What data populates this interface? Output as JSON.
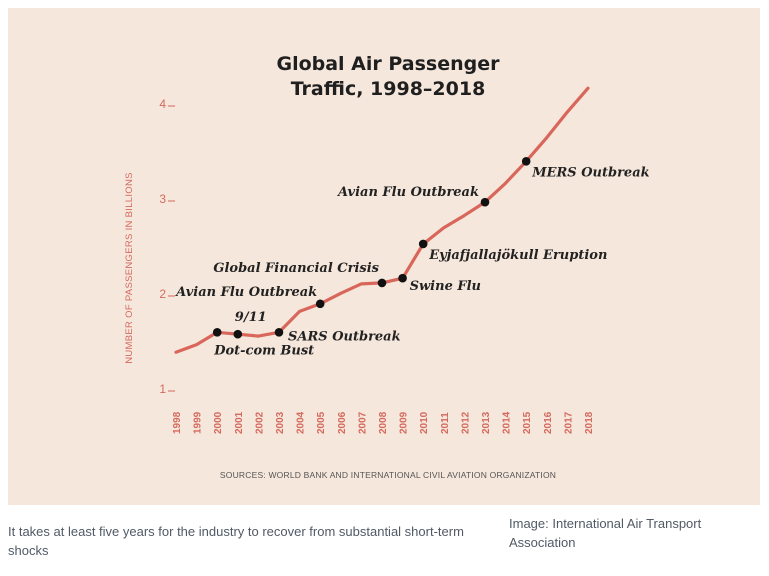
{
  "chart_data": {
    "type": "line",
    "title_lines": [
      "Global Air Passenger",
      "Traffic, 1998–2018"
    ],
    "ylabel": "NUMBER OF PASSENGERS IN BILLIONS",
    "yticks": [
      "1",
      "2",
      "3",
      "4"
    ],
    "ylim": [
      1,
      4
    ],
    "x": [
      1998,
      1999,
      2000,
      2001,
      2002,
      2003,
      2004,
      2005,
      2006,
      2007,
      2008,
      2009,
      2010,
      2011,
      2012,
      2013,
      2014,
      2015,
      2016,
      2017,
      2018
    ],
    "x_tick_labels": [
      "1998",
      "1999",
      "2000",
      "2001",
      "2002",
      "2003",
      "2004",
      "2005",
      "2006",
      "2007",
      "2008",
      "2009",
      "2010",
      "2011",
      "2012",
      "2013",
      "2014",
      "2015",
      "2016",
      "2017",
      "2018"
    ],
    "series": [
      {
        "values": [
          1.45,
          1.53,
          1.66,
          1.64,
          1.62,
          1.66,
          1.88,
          1.96,
          2.07,
          2.17,
          2.18,
          2.23,
          2.59,
          2.76,
          2.89,
          3.03,
          3.23,
          3.46,
          3.71,
          3.98,
          4.23
        ]
      }
    ],
    "events": [
      {
        "year": 2000,
        "value": 1.66,
        "label": "Dot-com Bust"
      },
      {
        "year": 2001,
        "value": 1.64,
        "label": "9/11"
      },
      {
        "year": 2003,
        "value": 1.66,
        "label": "SARS Outbreak"
      },
      {
        "year": 2005,
        "value": 1.96,
        "label": "Avian Flu Outbreak"
      },
      {
        "year": 2008,
        "value": 2.18,
        "label": "Global Financial Crisis"
      },
      {
        "year": 2009,
        "value": 2.23,
        "label": "Swine Flu"
      },
      {
        "year": 2010,
        "value": 2.59,
        "label": "Eyjafjallajökull Eruption"
      },
      {
        "year": 2013,
        "value": 3.03,
        "label": "Avian Flu Outbreak"
      },
      {
        "year": 2015,
        "value": 3.46,
        "label": "MERS Outbreak"
      }
    ],
    "source": "SOURCES: WORLD BANK AND INTERNATIONAL CIVIL AVIATION ORGANIZATION",
    "colors": {
      "line": "#d9665a",
      "background": "#f6e7dc",
      "marker": "#111111"
    }
  },
  "caption": {
    "text": "It takes at least five years for the industry to recover from substantial short-term shocks",
    "credit": "Image: International Air Transport Association"
  }
}
